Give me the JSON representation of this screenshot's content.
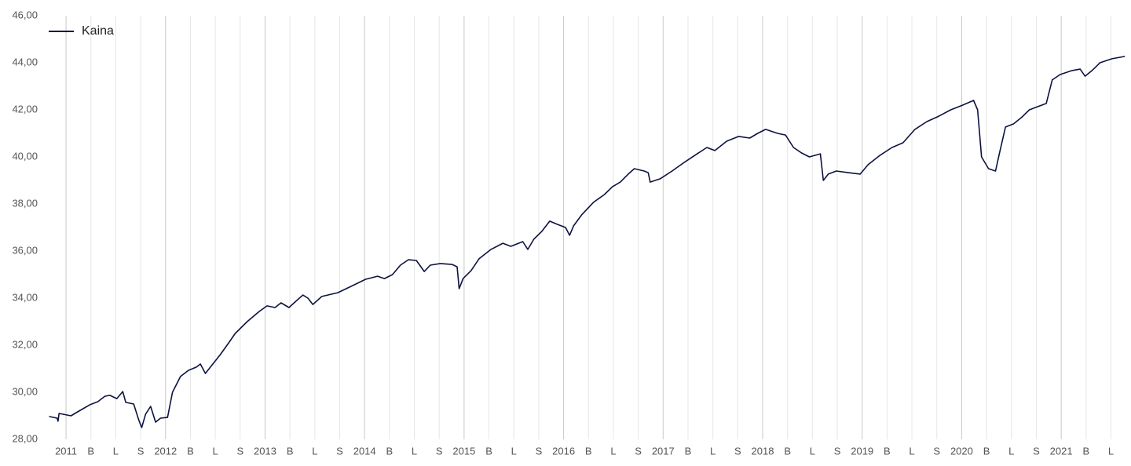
{
  "chart_data": {
    "type": "line",
    "x": [
      2010.83,
      2010.91,
      2010.92,
      2010.93,
      2011.05,
      2011.13,
      2011.24,
      2011.32,
      2011.39,
      2011.44,
      2011.51,
      2011.57,
      2011.6,
      2011.68,
      2011.73,
      2011.76,
      2011.8,
      2011.85,
      2011.9,
      2011.95,
      2012.02,
      2012.07,
      2012.15,
      2012.23,
      2012.31,
      2012.35,
      2012.4,
      2012.47,
      2012.55,
      2012.63,
      2012.7,
      2012.82,
      2012.94,
      2013.02,
      2013.1,
      2013.16,
      2013.24,
      2013.3,
      2013.38,
      2013.43,
      2013.48,
      2013.57,
      2013.73,
      2013.85,
      2014.01,
      2014.13,
      2014.2,
      2014.28,
      2014.36,
      2014.44,
      2014.52,
      2014.6,
      2014.66,
      2014.76,
      2014.88,
      2014.93,
      2014.95,
      2014.99,
      2015.07,
      2015.15,
      2015.27,
      2015.39,
      2015.47,
      2015.59,
      2015.64,
      2015.7,
      2015.78,
      2015.86,
      2015.94,
      2016.02,
      2016.06,
      2016.1,
      2016.18,
      2016.3,
      2016.41,
      2016.49,
      2016.57,
      2016.65,
      2016.71,
      2016.81,
      2016.85,
      2016.87,
      2016.97,
      2017.09,
      2017.2,
      2017.32,
      2017.44,
      2017.52,
      2017.64,
      2017.76,
      2017.87,
      2017.95,
      2018.03,
      2018.15,
      2018.23,
      2018.31,
      2018.39,
      2018.47,
      2018.58,
      2018.61,
      2018.66,
      2018.74,
      2018.86,
      2018.98,
      2019.06,
      2019.18,
      2019.3,
      2019.41,
      2019.53,
      2019.65,
      2019.77,
      2019.89,
      2020.01,
      2020.12,
      2020.16,
      2020.2,
      2020.27,
      2020.34,
      2020.38,
      2020.44,
      2020.52,
      2020.6,
      2020.68,
      2020.76,
      2020.85,
      2020.91,
      2020.99,
      2021.11,
      2021.19,
      2021.24,
      2021.31,
      2021.39,
      2021.51,
      2021.64
    ],
    "series": [
      {
        "name": "Kaina",
        "color": "#0d1240",
        "values": [
          28.97,
          28.9,
          28.77,
          29.1,
          29.0,
          29.2,
          29.47,
          29.6,
          29.83,
          29.87,
          29.73,
          30.03,
          29.57,
          29.5,
          28.83,
          28.5,
          29.07,
          29.4,
          28.73,
          28.9,
          28.93,
          30.0,
          30.67,
          30.93,
          31.07,
          31.2,
          30.8,
          31.17,
          31.6,
          32.07,
          32.5,
          33.0,
          33.43,
          33.67,
          33.6,
          33.8,
          33.6,
          33.83,
          34.13,
          34.0,
          33.73,
          34.07,
          34.23,
          34.47,
          34.8,
          34.93,
          34.83,
          35.0,
          35.4,
          35.63,
          35.6,
          35.13,
          35.4,
          35.47,
          35.43,
          35.33,
          34.4,
          34.83,
          35.17,
          35.67,
          36.07,
          36.33,
          36.2,
          36.4,
          36.07,
          36.5,
          36.83,
          37.27,
          37.13,
          37.0,
          36.67,
          37.07,
          37.53,
          38.07,
          38.4,
          38.73,
          38.93,
          39.27,
          39.5,
          39.4,
          39.33,
          38.93,
          39.07,
          39.4,
          39.73,
          40.07,
          40.4,
          40.27,
          40.67,
          40.87,
          40.8,
          41.0,
          41.17,
          41.0,
          40.93,
          40.4,
          40.17,
          40.0,
          40.13,
          39.0,
          39.27,
          39.4,
          39.33,
          39.27,
          39.67,
          40.07,
          40.4,
          40.6,
          41.17,
          41.5,
          41.73,
          42.0,
          42.2,
          42.4,
          42.0,
          40.0,
          39.5,
          39.4,
          40.17,
          41.27,
          41.4,
          41.67,
          42.0,
          42.13,
          42.27,
          43.27,
          43.5,
          43.67,
          43.73,
          43.43,
          43.67,
          44.0,
          44.17,
          44.27
        ]
      }
    ],
    "xlim": [
      2010.81,
      2021.67
    ],
    "xticks": [
      2011,
      {
        "value": 2011.25,
        "label": "B"
      },
      {
        "value": 2011.5,
        "label": "L"
      },
      {
        "value": 2011.75,
        "label": "S"
      },
      2012,
      {
        "value": 2012.25,
        "label": "B"
      },
      {
        "value": 2012.5,
        "label": "L"
      },
      {
        "value": 2012.75,
        "label": "S"
      },
      2013,
      {
        "value": 2013.25,
        "label": "B"
      },
      {
        "value": 2013.5,
        "label": "L"
      },
      {
        "value": 2013.75,
        "label": "S"
      },
      2014,
      {
        "value": 2014.25,
        "label": "B"
      },
      {
        "value": 2014.5,
        "label": "L"
      },
      {
        "value": 2014.75,
        "label": "S"
      },
      2015,
      {
        "value": 2015.25,
        "label": "B"
      },
      {
        "value": 2015.5,
        "label": "L"
      },
      {
        "value": 2015.75,
        "label": "S"
      },
      2016,
      {
        "value": 2016.25,
        "label": "B"
      },
      {
        "value": 2016.5,
        "label": "L"
      },
      {
        "value": 2016.75,
        "label": "S"
      },
      2017,
      {
        "value": 2017.25,
        "label": "B"
      },
      {
        "value": 2017.5,
        "label": "L"
      },
      {
        "value": 2017.75,
        "label": "S"
      },
      2018,
      {
        "value": 2018.25,
        "label": "B"
      },
      {
        "value": 2018.5,
        "label": "L"
      },
      {
        "value": 2018.75,
        "label": "S"
      },
      2019,
      {
        "value": 2019.25,
        "label": "B"
      },
      {
        "value": 2019.5,
        "label": "L"
      },
      {
        "value": 2019.75,
        "label": "S"
      },
      2020,
      {
        "value": 2020.25,
        "label": "B"
      },
      {
        "value": 2020.5,
        "label": "L"
      },
      {
        "value": 2020.75,
        "label": "S"
      },
      2021,
      {
        "value": 2021.25,
        "label": "B"
      },
      {
        "value": 2021.5,
        "label": "L"
      }
    ],
    "ylim": [
      28,
      46
    ],
    "yticks": [
      {
        "value": 28,
        "label": "28,00"
      },
      {
        "value": 30,
        "label": "30,00"
      },
      {
        "value": 32,
        "label": "32,00"
      },
      {
        "value": 34,
        "label": "34,00"
      },
      {
        "value": 36,
        "label": "36,00"
      },
      {
        "value": 38,
        "label": "38,00"
      },
      {
        "value": 40,
        "label": "40,00"
      },
      {
        "value": 42,
        "label": "42,00"
      },
      {
        "value": 44,
        "label": "44,00"
      },
      {
        "value": 46,
        "label": "46,00"
      }
    ],
    "grid": true,
    "legend": "top-left"
  }
}
